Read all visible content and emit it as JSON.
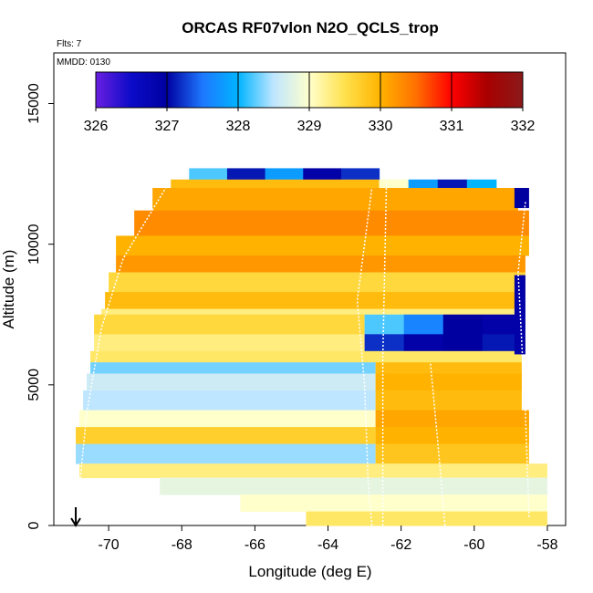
{
  "chart_data": {
    "type": "heatmap",
    "title": "ORCAS RF07vlon N2O_QCLS_trop",
    "flights_note": "Flts: 7",
    "date_note": "MMDD: 0130",
    "xlabel": "Longitude (deg E)",
    "ylabel": "Altitude (m)",
    "xlim": [
      -71.5,
      -57.5
    ],
    "ylim": [
      0,
      16800
    ],
    "xticks": [
      -70,
      -68,
      -66,
      -64,
      -62,
      -60,
      -58
    ],
    "xtick_labels": [
      "-70",
      "-68",
      "-66",
      "-64",
      "-62",
      "-60",
      "-58"
    ],
    "yticks": [
      0,
      5000,
      10000,
      15000
    ],
    "ytick_labels": [
      "0",
      "5000",
      "10000",
      "15000"
    ],
    "colorbar": {
      "min": 326,
      "max": 332,
      "ticks": [
        326,
        327,
        328,
        329,
        330,
        331,
        332
      ],
      "tick_labels": [
        "326",
        "327",
        "328",
        "329",
        "330",
        "331",
        "332"
      ],
      "colors": [
        "#6a1ee0",
        "#0b0bc8",
        "#0000a0",
        "#1e78ff",
        "#00b4ff",
        "#bfe6ff",
        "#ffffcc",
        "#ffe14d",
        "#ffb300",
        "#ff7000",
        "#ff0000",
        "#a80000",
        "#8b1a1a"
      ]
    },
    "grid": false,
    "marker_longitude": -70.9,
    "bands": [
      {
        "y0": 12300,
        "y1": 12700,
        "x0": -67.8,
        "x1": -62.6,
        "value": 327.0,
        "stripes": [
          328.2,
          327.1,
          327.8,
          326.9,
          327.2
        ]
      },
      {
        "y0": 12000,
        "y1": 12300,
        "x0": -68.3,
        "x1": -62.6,
        "value": 329.9,
        "stripes": []
      },
      {
        "y0": 11700,
        "y1": 12300,
        "x0": -62.6,
        "x1": -59.4,
        "value": 328.3,
        "stripes": [
          329.0,
          327.8,
          327.1,
          328.0
        ]
      },
      {
        "y0": 11200,
        "y1": 12000,
        "x0": -68.8,
        "x1": -58.8,
        "value": 330.1,
        "stripes": []
      },
      {
        "y0": 10300,
        "y1": 11200,
        "x0": -69.3,
        "x1": -58.5,
        "value": 330.3,
        "stripes": []
      },
      {
        "y0": 9600,
        "y1": 10300,
        "x0": -69.8,
        "x1": -58.5,
        "value": 330.0,
        "stripes": []
      },
      {
        "y0": 9000,
        "y1": 9600,
        "x0": -69.8,
        "x1": -58.6,
        "value": 330.2,
        "stripes": []
      },
      {
        "y0": 8300,
        "y1": 9000,
        "x0": -70.0,
        "x1": -58.6,
        "value": 329.6,
        "stripes": []
      },
      {
        "y0": 7700,
        "y1": 8300,
        "x0": -70.1,
        "x1": -58.7,
        "value": 329.9,
        "stripes": []
      },
      {
        "y0": 7500,
        "y1": 7700,
        "x0": -70.2,
        "x1": -58.7,
        "value": 329.3,
        "stripes": []
      },
      {
        "y0": 6800,
        "y1": 7500,
        "x0": -70.4,
        "x1": -63.0,
        "value": 329.6,
        "stripes": []
      },
      {
        "y0": 6800,
        "y1": 7500,
        "x0": -63.0,
        "x1": -58.7,
        "value": 328.0,
        "stripes": [
          328.2,
          327.6,
          327.0,
          326.9
        ]
      },
      {
        "y0": 6200,
        "y1": 6800,
        "x0": -70.4,
        "x1": -63.0,
        "value": 329.3,
        "stripes": []
      },
      {
        "y0": 6200,
        "y1": 6800,
        "x0": -63.0,
        "x1": -58.7,
        "value": 327.5,
        "stripes": [
          327.2,
          326.9,
          327.0,
          327.1
        ]
      },
      {
        "y0": 5800,
        "y1": 6200,
        "x0": -70.5,
        "x1": -58.7,
        "value": 329.4,
        "stripes": []
      },
      {
        "y0": 5400,
        "y1": 5800,
        "x0": -70.5,
        "x1": -62.7,
        "value": 328.3,
        "stripes": []
      },
      {
        "y0": 5400,
        "y1": 5800,
        "x0": -62.7,
        "x1": -58.7,
        "value": 329.9,
        "stripes": []
      },
      {
        "y0": 4800,
        "y1": 5400,
        "x0": -70.6,
        "x1": -62.7,
        "value": 328.6,
        "stripes": []
      },
      {
        "y0": 4800,
        "y1": 5400,
        "x0": -62.7,
        "x1": -58.7,
        "value": 330.0,
        "stripes": []
      },
      {
        "y0": 4100,
        "y1": 4800,
        "x0": -70.7,
        "x1": -62.7,
        "value": 328.5,
        "stripes": []
      },
      {
        "y0": 4100,
        "y1": 4800,
        "x0": -62.7,
        "x1": -58.7,
        "value": 329.9,
        "stripes": []
      },
      {
        "y0": 3500,
        "y1": 4100,
        "x0": -70.8,
        "x1": -62.7,
        "value": 329.0,
        "stripes": []
      },
      {
        "y0": 3500,
        "y1": 4100,
        "x0": -62.7,
        "x1": -58.5,
        "value": 330.1,
        "stripes": []
      },
      {
        "y0": 2900,
        "y1": 3500,
        "x0": -70.9,
        "x1": -62.7,
        "value": 329.7,
        "stripes": []
      },
      {
        "y0": 2900,
        "y1": 3500,
        "x0": -62.7,
        "x1": -58.5,
        "value": 330.0,
        "stripes": []
      },
      {
        "y0": 2200,
        "y1": 2900,
        "x0": -70.9,
        "x1": -62.7,
        "value": 328.4,
        "stripes": []
      },
      {
        "y0": 2200,
        "y1": 2900,
        "x0": -62.7,
        "x1": -58.5,
        "value": 329.8,
        "stripes": []
      },
      {
        "y0": 1700,
        "y1": 2200,
        "x0": -70.8,
        "x1": -58.0,
        "value": 329.3,
        "stripes": []
      },
      {
        "y0": 1100,
        "y1": 1700,
        "x0": -68.6,
        "x1": -58.0,
        "value": 328.8,
        "stripes": []
      },
      {
        "y0": 500,
        "y1": 1100,
        "x0": -66.4,
        "x1": -58.0,
        "value": 329.0,
        "stripes": []
      },
      {
        "y0": 0,
        "y1": 500,
        "x0": -64.6,
        "x1": -58.0,
        "value": 329.4,
        "stripes": []
      },
      {
        "y0": 6100,
        "y1": 8900,
        "x0": -58.9,
        "x1": -58.6,
        "value": 326.9,
        "stripes": []
      },
      {
        "y0": 11300,
        "y1": 12000,
        "x0": -58.9,
        "x1": -58.5,
        "value": 327.0,
        "stripes": []
      }
    ]
  }
}
